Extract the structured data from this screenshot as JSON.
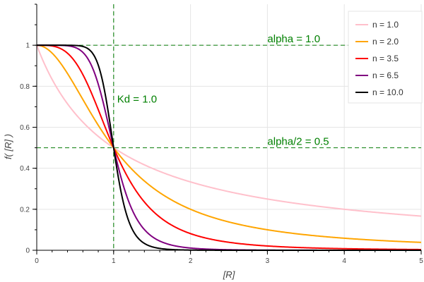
{
  "chart_data": {
    "type": "line",
    "xlabel": "[R]",
    "ylabel": "f( [R] )",
    "xlim": [
      0,
      5
    ],
    "ylim": [
      0,
      1.2
    ],
    "x_ticks": [
      "0",
      "1",
      "2",
      "3",
      "4",
      "5"
    ],
    "y_ticks": [
      "0",
      "0.2",
      "0.4",
      "0.6",
      "0.8",
      "1"
    ],
    "grid": true,
    "legend_position": "top-right",
    "function": "alpha / (1 + ([R]/Kd)^n)",
    "alpha": 1.0,
    "Kd": 1.0,
    "series": [
      {
        "name": "n = 1.0",
        "n": 1.0,
        "color": "#ffc0cb"
      },
      {
        "name": "n = 2.0",
        "n": 2.0,
        "color": "#ffa500"
      },
      {
        "name": "n = 3.5",
        "n": 3.5,
        "color": "#ff0000"
      },
      {
        "name": "n = 6.5",
        "n": 6.5,
        "color": "#800080"
      },
      {
        "name": "n = 10.0",
        "n": 10.0,
        "color": "#000000"
      }
    ],
    "reference_lines": [
      {
        "orientation": "horizontal",
        "value": 1.0,
        "label": "alpha = 1.0",
        "label_x": 3.0,
        "color": "#228b22"
      },
      {
        "orientation": "horizontal",
        "value": 0.5,
        "label": "alpha/2 = 0.5",
        "label_x": 3.0,
        "color": "#228b22"
      },
      {
        "orientation": "vertical",
        "value": 1.0,
        "label": "Kd = 1.0",
        "label_y": 0.72,
        "color": "#228b22"
      }
    ],
    "annotation_color": "#008000"
  }
}
